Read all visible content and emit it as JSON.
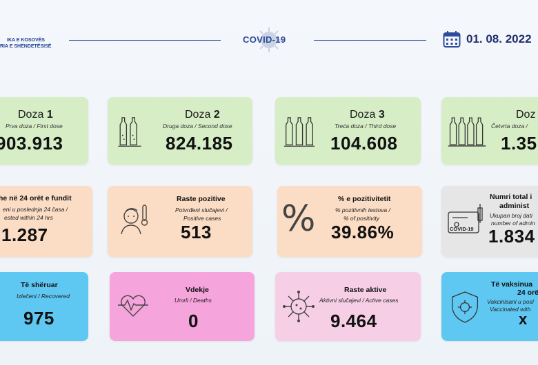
{
  "header": {
    "ministry_line1": "IKA E KOSOVËS",
    "ministry_line2": "RIA E SHËNDETËSISË",
    "logo_text": "COVID-19",
    "date": "01. 08. 2022"
  },
  "row1": [
    {
      "title_word": "Doza",
      "title_num": "1",
      "subtitle": "Prva doza / First dose",
      "value": "903.913"
    },
    {
      "title_word": "Doza",
      "title_num": "2",
      "subtitle": "Druga doza / Second dose",
      "value": "824.185"
    },
    {
      "title_word": "Doza",
      "title_num": "3",
      "subtitle": "Treća doza / Third dose",
      "value": "104.608"
    },
    {
      "title_word": "Doz",
      "title_num": "",
      "subtitle": "Četvrta doza /",
      "value": "1.35"
    }
  ],
  "row2": [
    {
      "title": "he në 24 orët e fundit",
      "sub1": "eni u poslednja 24 časa /",
      "sub2": "ested within 24 hrs",
      "value": "1.287"
    },
    {
      "title": "Raste pozitive",
      "sub1": "Potvrđeni slučajevi /",
      "sub2": "Positive cases",
      "value": "513"
    },
    {
      "title": "% e pozitivitetit",
      "sub1": "% pozitivnih testova /",
      "sub2": "% of positivity",
      "value": "39.86%"
    },
    {
      "title": "Numri total i",
      "title2": "administ",
      "sub1": "Ukupan broj dati",
      "sub2": "number of admin",
      "value": "1.834",
      "icon_label": "COVID-19"
    }
  ],
  "row3": [
    {
      "title": "Të shëruar",
      "sub1": "Izlečeni / Recovered",
      "value": "975"
    },
    {
      "title": "Vdekje",
      "sub1": "Umrli / Deaths",
      "value": "0"
    },
    {
      "title": "Raste aktive",
      "sub1": "Aktivni slučajevi / Active cases",
      "value": "9.464"
    },
    {
      "title": "Të vaksinua",
      "title2": "24 orë",
      "sub1": "Vakcinisani u posl",
      "sub2": "Vaccinated with",
      "value": "x"
    }
  ],
  "colors": {
    "green": "#d6edc6",
    "peach": "#fbdcc4",
    "blue": "#5ec7f2",
    "pink": "#f6a4dc",
    "light_pink": "#f6cfe6",
    "gray": "#e6e6e6",
    "header_blue": "#2a4a9a"
  }
}
